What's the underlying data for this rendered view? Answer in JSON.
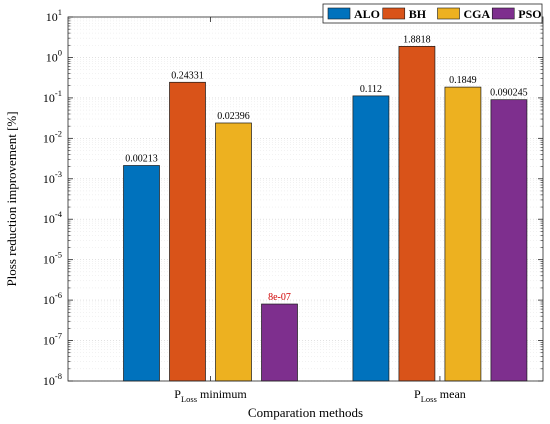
{
  "chart_data": {
    "type": "bar",
    "ylabel": "Ploss reduction improvement [%]",
    "xlabel": "Comparation methods",
    "yscale": "log",
    "ylim": [
      1e-08,
      10
    ],
    "y_exponents": [
      "-8",
      "-7",
      "-6",
      "-5",
      "-4",
      "-3",
      "-2",
      "-1",
      "0",
      "1"
    ],
    "y_tick_base": "10",
    "grid": true,
    "legend_position": "top-right",
    "categories": [
      {
        "main": "P",
        "sub": "Loss",
        "suffix": " minimum"
      },
      {
        "main": "P",
        "sub": "Loss",
        "suffix": " mean"
      }
    ],
    "series": [
      {
        "name": "ALO",
        "color": "#0072BD",
        "values": [
          0.00213,
          0.112
        ],
        "labels": [
          "0.00213",
          "0.112"
        ]
      },
      {
        "name": "BH",
        "color": "#D95319",
        "values": [
          0.24331,
          1.8818
        ],
        "labels": [
          "0.24331",
          "1.8818"
        ]
      },
      {
        "name": "CGA",
        "color": "#EDB120",
        "values": [
          0.02396,
          0.1849
        ],
        "labels": [
          "0.02396",
          "0.1849"
        ]
      },
      {
        "name": "PSO",
        "color": "#7E2F8E",
        "values": [
          8e-07,
          0.090245
        ],
        "labels": [
          "8e-07",
          "0.090245"
        ]
      }
    ],
    "highlight_label_color": "#D00000",
    "highlighted_labels": [
      [
        3,
        0
      ]
    ]
  }
}
